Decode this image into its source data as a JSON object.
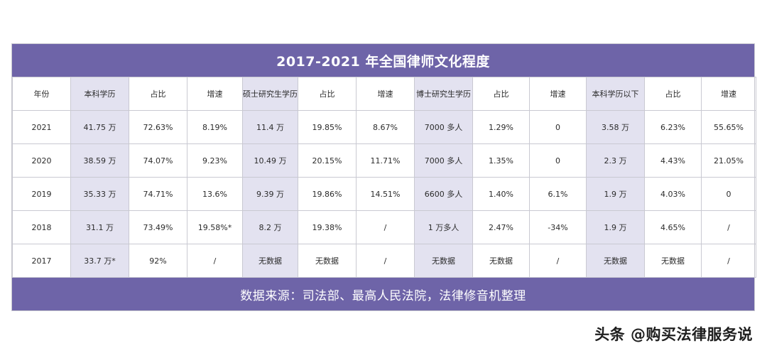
{
  "title": "2017-2021 年全国律师文化程度",
  "headers": [
    "年份",
    "本科学历",
    "占比",
    "增速",
    "硕士研究生学历",
    "占比",
    "增速",
    "博士研究生学历",
    "占比",
    "增速",
    "本科学历以下",
    "占比",
    "增速"
  ],
  "rows": [
    [
      "2021",
      "41.75 万",
      "72.63%",
      "8.19%",
      "11.4 万",
      "19.85%",
      "8.67%",
      "7000 多人",
      "1.29%",
      "0",
      "3.58 万",
      "6.23%",
      "55.65%"
    ],
    [
      "2020",
      "38.59 万",
      "74.07%",
      "9.23%",
      "10.49 万",
      "20.15%",
      "11.71%",
      "7000 多人",
      "1.35%",
      "0",
      "2.3 万",
      "4.43%",
      "21.05%"
    ],
    [
      "2019",
      "35.33 万",
      "74.71%",
      "13.6%",
      "9.39 万",
      "19.86%",
      "14.51%",
      "6600 多人",
      "1.40%",
      "6.1%",
      "1.9 万",
      "4.03%",
      "0"
    ],
    [
      "2018",
      "31.1 万",
      "73.49%",
      "19.58%*",
      "8.2 万",
      "19.38%",
      "/",
      "1 万多人",
      "2.47%",
      "-34%",
      "1.9 万",
      "4.65%",
      "/"
    ],
    [
      "2017",
      "33.7 万*",
      "92%",
      "/",
      "无数据",
      "无数据",
      "/",
      "无数据",
      "无数据",
      "/",
      "无数据",
      "无数据",
      "/"
    ]
  ],
  "source": "数据来源：司法部、最高人民法院，法律修音机整理",
  "watermark": "头条 @购买法律服务说",
  "colors": {
    "header_bar": "#6e64a8",
    "highlight_column": "#e3e2f0"
  }
}
